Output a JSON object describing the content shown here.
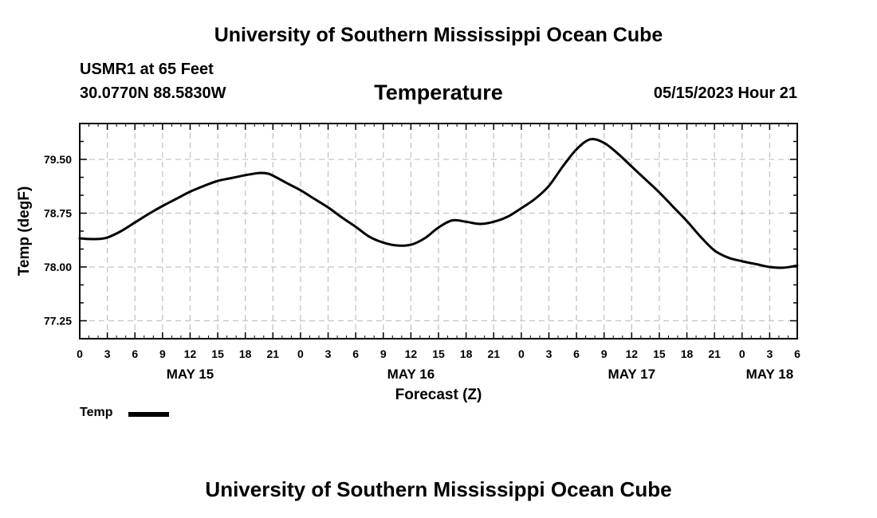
{
  "header": {
    "title": "University of Southern Mississippi Ocean Cube",
    "station": "USMR1 at 65 Feet",
    "coords": "30.0770N  88.5830W",
    "datetime": "05/15/2023 Hour 21"
  },
  "footer": {
    "title": "University of Southern Mississippi Ocean Cube"
  },
  "chart_data": {
    "type": "line",
    "title": "Temperature",
    "xlabel": "Forecast (Z)",
    "ylabel": "Temp (degF)",
    "x_unit": "hours since May 15 00Z",
    "xlim": [
      0,
      78
    ],
    "ylim": [
      77.0,
      80.0
    ],
    "y_ticks": [
      77.25,
      78.0,
      78.75,
      79.5
    ],
    "y_tick_labels": [
      "77.25",
      "78.00",
      "78.75",
      "79.50"
    ],
    "x_ticks": [
      0,
      3,
      6,
      9,
      12,
      15,
      18,
      21,
      24,
      27,
      30,
      33,
      36,
      39,
      42,
      45,
      48,
      51,
      54,
      57,
      60,
      63,
      66,
      69,
      72,
      75,
      78
    ],
    "x_tick_labels": [
      "0",
      "3",
      "6",
      "9",
      "12",
      "15",
      "18",
      "21",
      "0",
      "3",
      "6",
      "9",
      "12",
      "15",
      "18",
      "21",
      "0",
      "3",
      "6",
      "9",
      "12",
      "15",
      "18",
      "21",
      "0",
      "3",
      "6"
    ],
    "date_labels": [
      {
        "label": "MAY 15",
        "hour": 12
      },
      {
        "label": "MAY 16",
        "hour": 36
      },
      {
        "label": "MAY 17",
        "hour": 60
      },
      {
        "label": "MAY 18",
        "hour": 75
      }
    ],
    "grid": true,
    "legend_position": "bottom-left",
    "series": [
      {
        "name": "Temp",
        "x": [
          0,
          1,
          2,
          3,
          4.5,
          6,
          7.5,
          9,
          10.5,
          12,
          13.5,
          15,
          16.5,
          18,
          19.5,
          20.5,
          21.5,
          22.5,
          24,
          25.5,
          27,
          28.5,
          30,
          31.5,
          33,
          34.5,
          36,
          37.5,
          39,
          40.5,
          42,
          43.5,
          45,
          46.5,
          48,
          49.5,
          51,
          52.5,
          54,
          55.5,
          57,
          58.5,
          60,
          61.5,
          63,
          64.5,
          66,
          67.5,
          69,
          70.5,
          72,
          73.5,
          75,
          76.5,
          78
        ],
        "values": [
          78.4,
          78.39,
          78.39,
          78.41,
          78.5,
          78.62,
          78.74,
          78.85,
          78.95,
          79.05,
          79.13,
          79.2,
          79.24,
          79.28,
          79.31,
          79.3,
          79.24,
          79.17,
          79.07,
          78.95,
          78.83,
          78.69,
          78.56,
          78.42,
          78.34,
          78.3,
          78.31,
          78.4,
          78.55,
          78.65,
          78.63,
          78.6,
          78.63,
          78.7,
          78.82,
          78.95,
          79.13,
          79.4,
          79.64,
          79.78,
          79.73,
          79.58,
          79.4,
          79.22,
          79.04,
          78.84,
          78.64,
          78.42,
          78.23,
          78.13,
          78.08,
          78.04,
          78.0,
          77.99,
          78.02
        ]
      }
    ]
  }
}
